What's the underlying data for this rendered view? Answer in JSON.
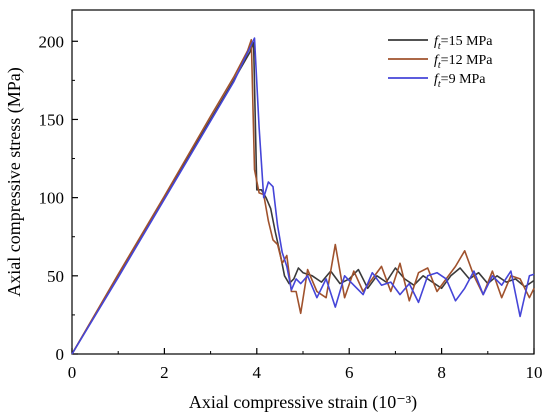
{
  "chart_data": {
    "type": "line",
    "title": "",
    "xlabel": "Axial compressive strain (10⁻³)",
    "ylabel": "Axial compressive stress (MPa)",
    "xlim": [
      0,
      10
    ],
    "ylim": [
      0,
      220
    ],
    "xticks": [
      "0",
      "2",
      "4",
      "6",
      "8",
      "10"
    ],
    "yticks": [
      "0",
      "50",
      "100",
      "150",
      "200"
    ],
    "grid": false,
    "legend_position": "top-right",
    "legend": [
      {
        "prefix": "f",
        "sub": "t",
        "suffix": "=15 MPa"
      },
      {
        "prefix": "f",
        "sub": "t",
        "suffix": "=12 MPa"
      },
      {
        "prefix": "f",
        "sub": "t",
        "suffix": "=9 MPa"
      }
    ],
    "series": [
      {
        "name": "ft=15 MPa",
        "color": "#3a3a3a",
        "x": [
          0,
          1,
          2,
          3,
          3.5,
          3.85,
          3.93,
          4.0,
          4.1,
          4.2,
          4.3,
          4.4,
          4.5,
          4.6,
          4.7,
          4.8,
          4.9,
          5.0,
          5.2,
          5.4,
          5.6,
          5.8,
          6.0,
          6.2,
          6.4,
          6.6,
          6.8,
          7.0,
          7.2,
          7.4,
          7.6,
          7.8,
          8.0,
          8.2,
          8.4,
          8.6,
          8.8,
          9.0,
          9.2,
          9.4,
          9.6,
          9.8,
          10.0
        ],
        "y": [
          0,
          50,
          100,
          150,
          175,
          193,
          199,
          105,
          105,
          100,
          93,
          78,
          65,
          50,
          45,
          48,
          55,
          52,
          50,
          46,
          53,
          45,
          48,
          54,
          42,
          50,
          46,
          55,
          48,
          44,
          50,
          46,
          42,
          50,
          55,
          48,
          52,
          45,
          50,
          46,
          48,
          43,
          47
        ]
      },
      {
        "name": "ft=12 MPa",
        "color": "#a0522d",
        "x": [
          0,
          1,
          2,
          3,
          3.5,
          3.8,
          3.88,
          3.95,
          4.05,
          4.15,
          4.25,
          4.35,
          4.45,
          4.55,
          4.65,
          4.75,
          4.85,
          4.95,
          5.1,
          5.3,
          5.5,
          5.7,
          5.9,
          6.1,
          6.3,
          6.5,
          6.7,
          6.9,
          7.1,
          7.3,
          7.5,
          7.7,
          7.9,
          8.1,
          8.3,
          8.5,
          8.7,
          8.9,
          9.1,
          9.3,
          9.5,
          9.7,
          9.9,
          10.0
        ],
        "y": [
          0,
          51,
          101,
          152,
          177,
          194,
          201,
          118,
          103,
          102,
          85,
          73,
          70,
          58,
          63,
          40,
          40,
          26,
          54,
          40,
          36,
          70,
          36,
          53,
          40,
          48,
          56,
          40,
          58,
          34,
          52,
          55,
          40,
          48,
          56,
          66,
          50,
          38,
          53,
          36,
          50,
          48,
          36,
          42
        ]
      },
      {
        "name": "ft=9 MPa",
        "color": "#4545d8",
        "x": [
          0,
          1,
          2,
          3,
          3.5,
          3.95,
          4.05,
          4.15,
          4.25,
          4.35,
          4.45,
          4.55,
          4.65,
          4.75,
          4.85,
          4.95,
          5.1,
          5.3,
          5.5,
          5.7,
          5.9,
          6.1,
          6.3,
          6.5,
          6.7,
          6.9,
          7.1,
          7.3,
          7.5,
          7.7,
          7.9,
          8.1,
          8.3,
          8.5,
          8.7,
          8.9,
          9.1,
          9.3,
          9.5,
          9.7,
          9.9,
          10.0
        ],
        "y": [
          0,
          49,
          99,
          149,
          174,
          202,
          145,
          100,
          110,
          107,
          82,
          65,
          56,
          41,
          48,
          45,
          50,
          36,
          48,
          30,
          50,
          44,
          38,
          52,
          44,
          46,
          38,
          45,
          33,
          50,
          52,
          48,
          34,
          42,
          53,
          38,
          50,
          44,
          53,
          24,
          50,
          51
        ]
      }
    ]
  }
}
